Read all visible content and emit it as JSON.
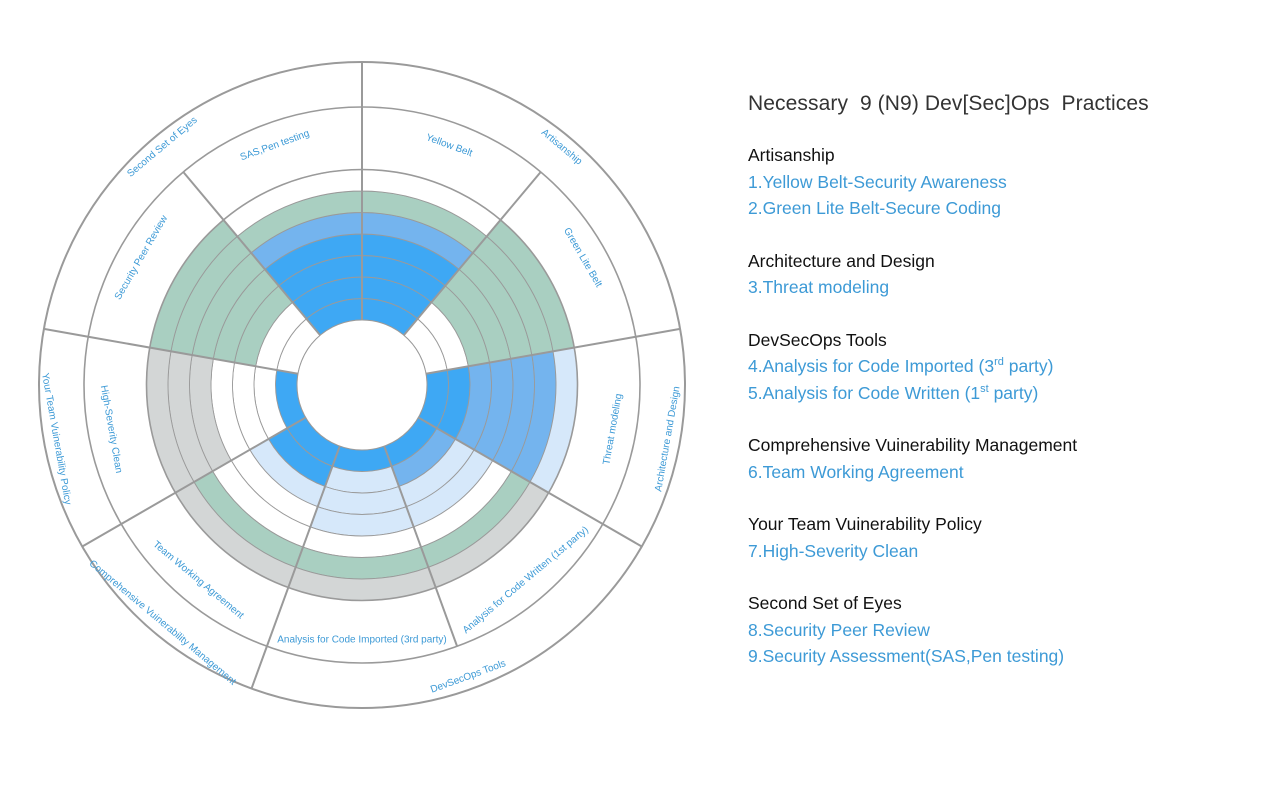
{
  "title": "Necessary  9 (N9) Dev[Sec]Ops  Practices",
  "groups": [
    {
      "heading": "Artisanship",
      "items": [
        {
          "main": "1.Yellow Belt-Security Awareness"
        },
        {
          "main": "2.Green Lite Belt-Secure Coding"
        }
      ]
    },
    {
      "heading": "Architecture and Design",
      "items": [
        {
          "main": "3.Threat modeling"
        }
      ]
    },
    {
      "heading": "DevSecOps Tools",
      "items": [
        {
          "main": "4.Analysis for Code Imported (3",
          "sup": "rd",
          "tail": " party)"
        },
        {
          "main": "5.Analysis for Code Written (1",
          "sup": "st",
          "tail": " party)"
        }
      ]
    },
    {
      "heading": "Comprehensive Vuinerability Management",
      "items": [
        {
          "main": "6.Team Working Agreement"
        }
      ]
    },
    {
      "heading": "Your Team Vuinerability Policy",
      "items": [
        {
          "main": "7.High-Severity Clean"
        }
      ]
    },
    {
      "heading": "Second Set of Eyes",
      "items": [
        {
          "main": "8.Security Peer Review"
        },
        {
          "main": "9.Security Assessment(SAS,Pen testing)"
        }
      ]
    }
  ],
  "wheel": {
    "practices": [
      {
        "label": "Yellow Belt",
        "levels": [
          "blue",
          "blue",
          "blue",
          "blue",
          "lightblue",
          "green",
          "white"
        ]
      },
      {
        "label": "Green Lite Belt",
        "levels": [
          "white",
          "white",
          "green",
          "green",
          "green",
          "green",
          "green"
        ]
      },
      {
        "label": "Threat modeling",
        "levels": [
          "blue",
          "blue",
          "lightblue",
          "lightblue",
          "lightblue",
          "lightblue",
          "palest"
        ]
      },
      {
        "label": "Analysis for Code Written  (1st party)",
        "levels": [
          "blue",
          "lightblue",
          "palest",
          "palest",
          "white",
          "green",
          "gray"
        ]
      },
      {
        "label": "Analysis for Code Imported   (3rd party)",
        "levels": [
          "blue",
          "palest",
          "palest",
          "palest",
          "white",
          "green",
          "gray"
        ]
      },
      {
        "label": "Team Working Agreement",
        "levels": [
          "blue",
          "blue",
          "palest",
          "white",
          "white",
          "green",
          "gray"
        ]
      },
      {
        "label": "High-Severity Clean",
        "levels": [
          "blue",
          "white",
          "white",
          "white",
          "gray",
          "gray",
          "gray"
        ]
      },
      {
        "label": "Security Peer Review",
        "levels": [
          "white",
          "white",
          "green",
          "green",
          "green",
          "green",
          "green"
        ]
      },
      {
        "label": "SAS,Pen testing",
        "levels": [
          "blue",
          "blue",
          "blue",
          "blue",
          "lightblue",
          "green",
          "white"
        ]
      }
    ],
    "categories": [
      {
        "label": "Artisanship"
      },
      {
        "label": "Architecture and Design"
      },
      {
        "label": "DevSecOps Tools"
      },
      {
        "label": "Comprehensive Vuinerability Management"
      },
      {
        "label": "Your Team Vuinerability Policy"
      },
      {
        "label": "Second Set of Eyes"
      }
    ],
    "colors": {
      "blue": "#3ea8f4",
      "lightblue": "#74b4ee",
      "palest": "#d6e8fa",
      "green": "#a9cfc1",
      "gray": "#d3d6d6",
      "white": "#ffffff",
      "stroke": "#9a9a9a"
    }
  }
}
